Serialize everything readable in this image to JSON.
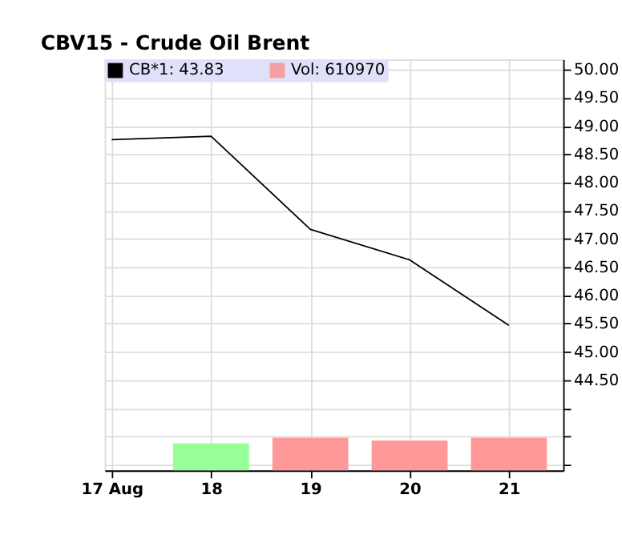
{
  "chart_data": {
    "type": "line",
    "title": "CBV15 - Crude Oil Brent",
    "categories": [
      "17 Aug",
      "18",
      "19",
      "20",
      "21"
    ],
    "ylim": [
      42.9,
      50.18
    ],
    "yticks": [
      {
        "value": 43.0,
        "label": null
      },
      {
        "value": 43.5,
        "label": null
      },
      {
        "value": 44.0,
        "label": null
      },
      {
        "value": 44.5,
        "label": "44.50"
      },
      {
        "value": 45.0,
        "label": "45.00"
      },
      {
        "value": 45.5,
        "label": "45.50"
      },
      {
        "value": 46.0,
        "label": "46.00"
      },
      {
        "value": 46.5,
        "label": "46.50"
      },
      {
        "value": 47.0,
        "label": "47.00"
      },
      {
        "value": 47.5,
        "label": "47.50"
      },
      {
        "value": 48.0,
        "label": "48.00"
      },
      {
        "value": 48.5,
        "label": "48.50"
      },
      {
        "value": 49.0,
        "label": "49.00"
      },
      {
        "value": 49.5,
        "label": "49.50"
      },
      {
        "value": 50.0,
        "label": "50.00"
      }
    ],
    "grid": true,
    "legend": "top left",
    "marker": "none",
    "line_style": "solid",
    "series": [
      {
        "name": "CB*1: 43.83",
        "type": "line",
        "color": "#000000",
        "values": [
          48.76,
          48.82,
          47.17,
          46.63,
          45.47
        ]
      },
      {
        "name": "Vol: 610970",
        "type": "bar",
        "color": "#f4a0a0",
        "colors": [
          null,
          "#99ff99",
          "#ff9999",
          "#ff9999",
          "#ff9999"
        ],
        "base": [
          null,
          42.9,
          42.9,
          42.9,
          42.9
        ],
        "values": [
          null,
          0.48,
          0.58,
          0.53,
          0.58
        ]
      }
    ]
  }
}
